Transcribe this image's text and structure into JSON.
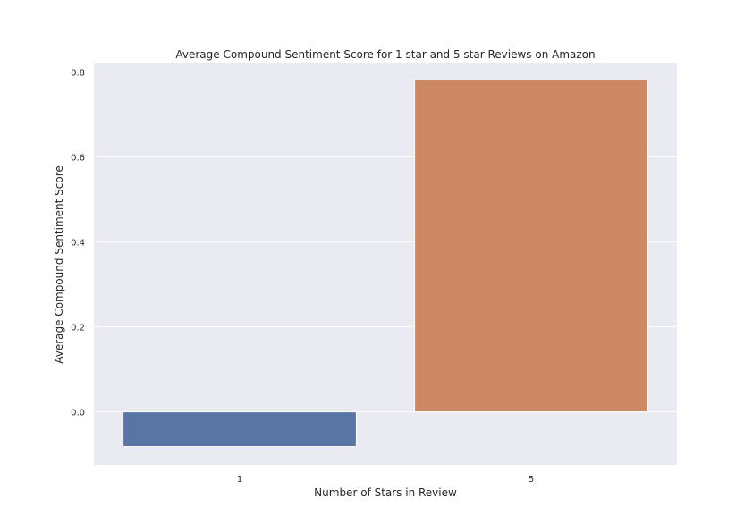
{
  "chart_data": {
    "type": "bar",
    "title": "Average Compound Sentiment Score for 1 star and 5 star Reviews on Amazon",
    "xlabel": "Number of Stars in Review",
    "ylabel": "Average Compound Sentiment Score",
    "categories": [
      "1",
      "5"
    ],
    "values": [
      -0.082,
      0.781
    ],
    "ylim": [
      -0.125,
      0.82
    ],
    "yticks": [
      0.0,
      0.2,
      0.4,
      0.6,
      0.8
    ],
    "ytick_labels": [
      "0.0",
      "0.2",
      "0.4",
      "0.6",
      "0.8"
    ],
    "grid": true,
    "colors": {
      "bars": [
        "#5875a4",
        "#cc8963"
      ],
      "background": "#eaeaf2",
      "grid": "#ffffff"
    }
  }
}
